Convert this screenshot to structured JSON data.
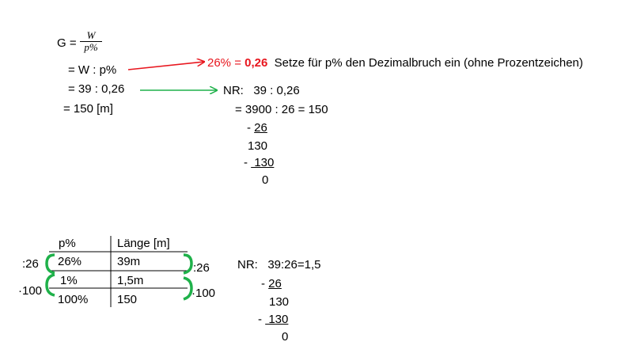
{
  "formula": {
    "g_label": "G =",
    "frac_num": "W",
    "frac_den": "p%",
    "step1": "= W : p%",
    "step2": "= 39 : 0,26",
    "step3": "= 150 [m]"
  },
  "note": {
    "pct": "26% = ",
    "dec": "0,26",
    "text": "  Setze für p% den Dezimalbruch ein (ohne Prozentzeichen)"
  },
  "nr1": {
    "l1": "NR:   39 : 0,26",
    "l2": "= 3900 : 26 = 150",
    "l3_minus": "- ",
    "l3_val": "26",
    "l4": "130",
    "l5_minus": "- ",
    "l5_val": " 130",
    "l6": "0"
  },
  "table": {
    "headers": [
      "p%",
      "Länge [m]"
    ],
    "rows": [
      [
        "26%",
        "39m"
      ],
      [
        "1%",
        "1,5m"
      ],
      [
        "100%",
        "150"
      ]
    ],
    "left_ops": [
      ":26",
      "·100"
    ],
    "right_ops": [
      ":26",
      "·100"
    ]
  },
  "nr2": {
    "l1": "NR:   39:26=1,5",
    "l2_minus": "- ",
    "l2_val": "26",
    "l3": "130",
    "l4_minus": "- ",
    "l4_val": " 130",
    "l5": "0"
  },
  "colors": {
    "red": "#e8161e",
    "green": "#1fb14a"
  }
}
